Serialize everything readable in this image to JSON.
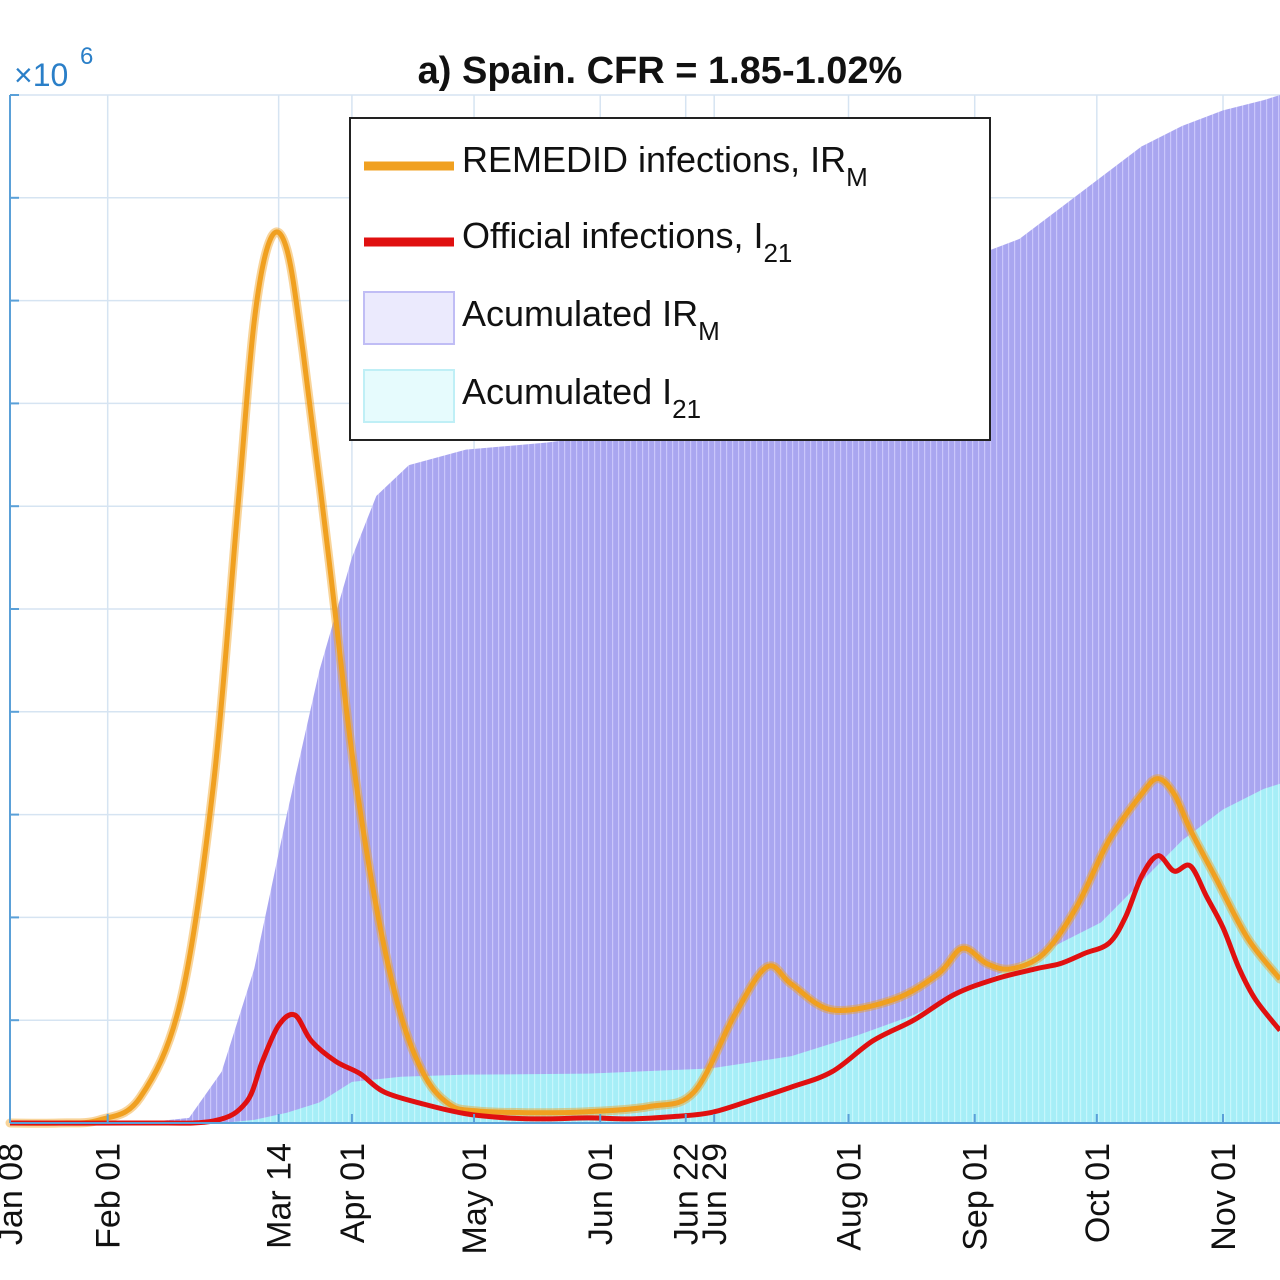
{
  "chart_data": {
    "type": "line",
    "title": "a) Spain. CFR = 1.85-1.02%",
    "y_exponent_label": "×10",
    "y_exponent_power": "6",
    "x_ticks": [
      {
        "label": "Jan 08",
        "day": 8
      },
      {
        "label": "Feb 01",
        "day": 32
      },
      {
        "label": "Mar 14",
        "day": 74
      },
      {
        "label": "Apr 01",
        "day": 92
      },
      {
        "label": "May 01",
        "day": 122
      },
      {
        "label": "Jun 01",
        "day": 153
      },
      {
        "label": "Jun 22",
        "day": 174
      },
      {
        "label": "Jun 29",
        "day": 181
      },
      {
        "label": "Aug 01",
        "day": 214
      },
      {
        "label": "Sep 01",
        "day": 245
      },
      {
        "label": "Oct 01",
        "day": 275
      },
      {
        "label": "Nov 01",
        "day": 306
      }
    ],
    "xlim": [
      8,
      320
    ],
    "ylim": [
      0,
      10
    ],
    "grid": true,
    "legend_position": "top-center",
    "legend": [
      {
        "label": "REMEDID infections, IR",
        "sub": "M",
        "kind": "line",
        "color": "#f0a020"
      },
      {
        "label": "Official infections, I",
        "sub": "21",
        "kind": "line",
        "color": "#e01010"
      },
      {
        "label": "Acumulated IR",
        "sub": "M",
        "kind": "patch",
        "color": "#a9a6f0"
      },
      {
        "label": "Acumulated I",
        "sub": "21",
        "kind": "patch",
        "color": "#a6eef7"
      }
    ],
    "series": [
      {
        "key": "remedid",
        "color": "#f0a020",
        "x": [
          8,
          20,
          30,
          40,
          50,
          58,
          64,
          68,
          72,
          76,
          80,
          86,
          92,
          98,
          104,
          110,
          116,
          122,
          135,
          150,
          165,
          176,
          186,
          194,
          200,
          210,
          225,
          236,
          242,
          248,
          254,
          262,
          270,
          278,
          286,
          290,
          294,
          298,
          304,
          312,
          320
        ],
        "y": [
          0.0,
          0.0,
          0.03,
          0.25,
          1.2,
          3.3,
          6.0,
          7.8,
          8.6,
          8.5,
          7.5,
          5.6,
          3.6,
          2.1,
          1.05,
          0.45,
          0.18,
          0.12,
          0.1,
          0.11,
          0.16,
          0.3,
          1.05,
          1.52,
          1.35,
          1.1,
          1.2,
          1.45,
          1.7,
          1.55,
          1.5,
          1.65,
          2.1,
          2.75,
          3.2,
          3.35,
          3.2,
          2.85,
          2.4,
          1.8,
          1.4
        ]
      },
      {
        "key": "official",
        "color": "#e01010",
        "x": [
          8,
          40,
          58,
          66,
          70,
          74,
          78,
          82,
          88,
          94,
          100,
          110,
          120,
          130,
          140,
          150,
          160,
          170,
          180,
          190,
          200,
          210,
          220,
          230,
          240,
          250,
          260,
          266,
          272,
          278,
          282,
          286,
          290,
          294,
          298,
          302,
          306,
          310,
          314,
          320
        ],
        "y": [
          0.0,
          0.0,
          0.02,
          0.2,
          0.6,
          0.95,
          1.05,
          0.8,
          0.6,
          0.48,
          0.3,
          0.18,
          0.09,
          0.05,
          0.04,
          0.05,
          0.04,
          0.06,
          0.1,
          0.22,
          0.35,
          0.5,
          0.8,
          1.0,
          1.25,
          1.4,
          1.5,
          1.55,
          1.65,
          1.75,
          2.0,
          2.4,
          2.6,
          2.45,
          2.5,
          2.2,
          1.9,
          1.5,
          1.2,
          0.9
        ]
      },
      {
        "key": "acc_irm",
        "color": "#a9a6f0",
        "x": [
          8,
          40,
          52,
          60,
          68,
          76,
          84,
          92,
          98,
          106,
          120,
          140,
          160,
          176,
          186,
          196,
          206,
          216,
          226,
          236,
          246,
          256,
          266,
          276,
          286,
          296,
          306,
          316,
          320
        ],
        "y": [
          0.0,
          0.0,
          0.05,
          0.5,
          1.5,
          3.0,
          4.4,
          5.5,
          6.1,
          6.4,
          6.55,
          6.62,
          6.72,
          6.9,
          7.05,
          7.3,
          7.6,
          7.9,
          8.1,
          8.3,
          8.45,
          8.6,
          8.9,
          9.2,
          9.5,
          9.7,
          9.85,
          9.95,
          10.0
        ]
      },
      {
        "key": "acc_i21",
        "color": "#a6eef7",
        "x": [
          8,
          60,
          68,
          76,
          84,
          92,
          104,
          120,
          150,
          180,
          200,
          216,
          230,
          246,
          256,
          266,
          276,
          286,
          296,
          306,
          316,
          320
        ],
        "y": [
          0.0,
          0.0,
          0.03,
          0.1,
          0.2,
          0.4,
          0.45,
          0.47,
          0.48,
          0.53,
          0.65,
          0.85,
          1.05,
          1.35,
          1.55,
          1.75,
          1.95,
          2.35,
          2.75,
          3.05,
          3.25,
          3.3
        ]
      }
    ]
  }
}
